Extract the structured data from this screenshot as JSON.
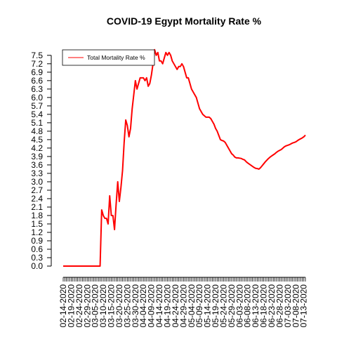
{
  "chart_data": {
    "type": "line",
    "title": "COVID-19 Egypt Mortality Rate %",
    "xlabel": "",
    "ylabel": "",
    "x_start": "2020-02-14",
    "x_end": "2020-07-14",
    "ylim": [
      0,
      7.6
    ],
    "y_ticks": [
      "0.0",
      "0.3",
      "0.6",
      "0.9",
      "1.2",
      "1.5",
      "1.8",
      "2.1",
      "2.4",
      "2.7",
      "3.0",
      "3.3",
      "3.6",
      "3.9",
      "4.2",
      "4.5",
      "4.8",
      "5.1",
      "5.4",
      "5.7",
      "6.0",
      "6.3",
      "6.6",
      "6.9",
      "7.2",
      "7.5"
    ],
    "x_tick_labels": [
      "02-14-2020",
      "02-19-2020",
      "02-24-2020",
      "02-29-2020",
      "03-05-2020",
      "03-10-2020",
      "03-15-2020",
      "03-20-2020",
      "03-25-2020",
      "03-30-2020",
      "04-04-2020",
      "04-09-2020",
      "04-14-2020",
      "04-19-2020",
      "04-24-2020",
      "04-29-2020",
      "05-04-2020",
      "05-09-2020",
      "05-14-2020",
      "05-19-2020",
      "05-24-2020",
      "05-29-2020",
      "06-03-2020",
      "06-08-2020",
      "06-13-2020",
      "06-18-2020",
      "06-23-2020",
      "06-28-2020",
      "07-03-2020",
      "07-08-2020",
      "07-13-2020"
    ],
    "grid": false,
    "legend_position": "top-left",
    "series": [
      {
        "name": "Total Mortality Rate %",
        "color": "#ff0000",
        "points": [
          [
            "2020-02-14",
            0.0
          ],
          [
            "2020-03-08",
            0.0
          ],
          [
            "2020-03-09",
            2.0
          ],
          [
            "2020-03-10",
            1.8
          ],
          [
            "2020-03-11",
            1.7
          ],
          [
            "2020-03-12",
            1.7
          ],
          [
            "2020-03-13",
            1.5
          ],
          [
            "2020-03-14",
            2.5
          ],
          [
            "2020-03-15",
            1.8
          ],
          [
            "2020-03-16",
            1.8
          ],
          [
            "2020-03-17",
            1.3
          ],
          [
            "2020-03-18",
            2.2
          ],
          [
            "2020-03-19",
            3.0
          ],
          [
            "2020-03-20",
            2.3
          ],
          [
            "2020-03-21",
            2.8
          ],
          [
            "2020-03-22",
            3.4
          ],
          [
            "2020-03-23",
            4.4
          ],
          [
            "2020-03-24",
            5.2
          ],
          [
            "2020-03-25",
            5.0
          ],
          [
            "2020-03-26",
            4.6
          ],
          [
            "2020-03-27",
            4.9
          ],
          [
            "2020-03-28",
            5.6
          ],
          [
            "2020-03-29",
            6.1
          ],
          [
            "2020-03-30",
            6.6
          ],
          [
            "2020-03-31",
            6.3
          ],
          [
            "2020-04-01",
            6.5
          ],
          [
            "2020-04-02",
            6.7
          ],
          [
            "2020-04-03",
            6.7
          ],
          [
            "2020-04-04",
            6.7
          ],
          [
            "2020-04-05",
            6.6
          ],
          [
            "2020-04-06",
            6.7
          ],
          [
            "2020-04-07",
            6.4
          ],
          [
            "2020-04-08",
            6.5
          ],
          [
            "2020-04-09",
            6.8
          ],
          [
            "2020-04-10",
            7.2
          ],
          [
            "2020-04-11",
            7.7
          ],
          [
            "2020-04-12",
            7.5
          ],
          [
            "2020-04-13",
            7.6
          ],
          [
            "2020-04-14",
            7.3
          ],
          [
            "2020-04-15",
            7.3
          ],
          [
            "2020-04-16",
            7.2
          ],
          [
            "2020-04-17",
            7.4
          ],
          [
            "2020-04-18",
            7.6
          ],
          [
            "2020-04-19",
            7.5
          ],
          [
            "2020-04-20",
            7.6
          ],
          [
            "2020-04-21",
            7.5
          ],
          [
            "2020-04-22",
            7.3
          ],
          [
            "2020-04-23",
            7.2
          ],
          [
            "2020-04-24",
            7.1
          ],
          [
            "2020-04-25",
            7.0
          ],
          [
            "2020-04-26",
            7.1
          ],
          [
            "2020-04-27",
            7.1
          ],
          [
            "2020-04-28",
            7.2
          ],
          [
            "2020-04-29",
            7.1
          ],
          [
            "2020-04-30",
            6.9
          ],
          [
            "2020-05-01",
            6.7
          ],
          [
            "2020-05-02",
            6.7
          ],
          [
            "2020-05-03",
            6.5
          ],
          [
            "2020-05-04",
            6.3
          ],
          [
            "2020-05-05",
            6.2
          ],
          [
            "2020-05-06",
            6.1
          ],
          [
            "2020-05-07",
            6.0
          ],
          [
            "2020-05-08",
            5.8
          ],
          [
            "2020-05-09",
            5.6
          ],
          [
            "2020-05-10",
            5.5
          ],
          [
            "2020-05-11",
            5.4
          ],
          [
            "2020-05-12",
            5.35
          ],
          [
            "2020-05-13",
            5.3
          ],
          [
            "2020-05-14",
            5.3
          ],
          [
            "2020-05-15",
            5.3
          ],
          [
            "2020-05-16",
            5.25
          ],
          [
            "2020-05-17",
            5.15
          ],
          [
            "2020-05-18",
            5.05
          ],
          [
            "2020-05-19",
            4.9
          ],
          [
            "2020-05-20",
            4.8
          ],
          [
            "2020-05-21",
            4.65
          ],
          [
            "2020-05-22",
            4.5
          ],
          [
            "2020-05-23",
            4.47
          ],
          [
            "2020-05-24",
            4.45
          ],
          [
            "2020-05-25",
            4.4
          ],
          [
            "2020-05-26",
            4.3
          ],
          [
            "2020-05-27",
            4.2
          ],
          [
            "2020-05-28",
            4.1
          ],
          [
            "2020-05-29",
            4.0
          ],
          [
            "2020-05-30",
            3.95
          ],
          [
            "2020-05-31",
            3.88
          ],
          [
            "2020-06-01",
            3.85
          ],
          [
            "2020-06-02",
            3.85
          ],
          [
            "2020-06-03",
            3.84
          ],
          [
            "2020-06-04",
            3.83
          ],
          [
            "2020-06-05",
            3.8
          ],
          [
            "2020-06-06",
            3.78
          ],
          [
            "2020-06-07",
            3.72
          ],
          [
            "2020-06-08",
            3.67
          ],
          [
            "2020-06-09",
            3.63
          ],
          [
            "2020-06-10",
            3.59
          ],
          [
            "2020-06-11",
            3.55
          ],
          [
            "2020-06-12",
            3.51
          ],
          [
            "2020-06-13",
            3.48
          ],
          [
            "2020-06-14",
            3.47
          ],
          [
            "2020-06-15",
            3.45
          ],
          [
            "2020-06-16",
            3.5
          ],
          [
            "2020-06-17",
            3.57
          ],
          [
            "2020-06-18",
            3.64
          ],
          [
            "2020-06-19",
            3.71
          ],
          [
            "2020-06-20",
            3.77
          ],
          [
            "2020-06-21",
            3.83
          ],
          [
            "2020-06-22",
            3.88
          ],
          [
            "2020-06-23",
            3.92
          ],
          [
            "2020-06-24",
            3.96
          ],
          [
            "2020-06-25",
            4.0
          ],
          [
            "2020-06-26",
            4.05
          ],
          [
            "2020-06-27",
            4.09
          ],
          [
            "2020-06-28",
            4.12
          ],
          [
            "2020-06-29",
            4.15
          ],
          [
            "2020-06-30",
            4.2
          ],
          [
            "2020-07-01",
            4.25
          ],
          [
            "2020-07-02",
            4.28
          ],
          [
            "2020-07-03",
            4.3
          ],
          [
            "2020-07-04",
            4.32
          ],
          [
            "2020-07-05",
            4.35
          ],
          [
            "2020-07-06",
            4.38
          ],
          [
            "2020-07-07",
            4.4
          ],
          [
            "2020-07-08",
            4.42
          ],
          [
            "2020-07-09",
            4.46
          ],
          [
            "2020-07-10",
            4.5
          ],
          [
            "2020-07-11",
            4.53
          ],
          [
            "2020-07-12",
            4.56
          ],
          [
            "2020-07-13",
            4.6
          ],
          [
            "2020-07-14",
            4.66
          ]
        ]
      }
    ]
  }
}
